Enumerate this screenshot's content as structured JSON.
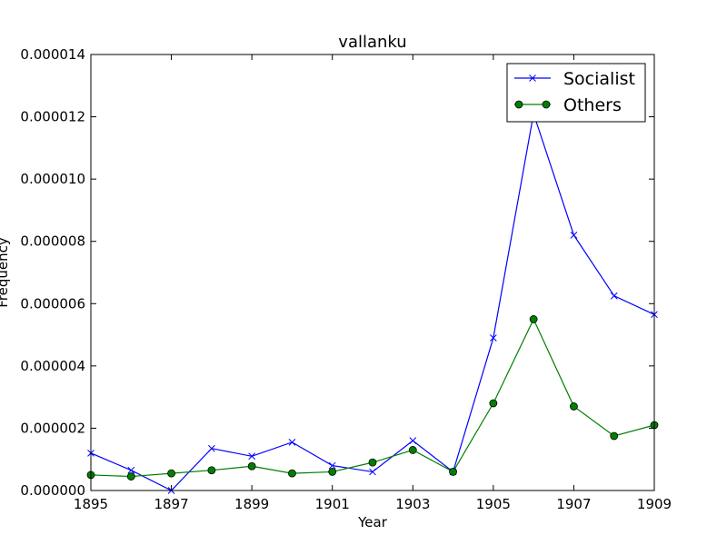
{
  "chart_data": {
    "type": "line",
    "title": "vallanku",
    "xlabel": "Year",
    "ylabel": "Frequency",
    "x": [
      1895,
      1896,
      1897,
      1898,
      1899,
      1900,
      1901,
      1902,
      1903,
      1904,
      1905,
      1906,
      1907,
      1908,
      1909
    ],
    "xlim": [
      1895,
      1909
    ],
    "ylim": [
      0,
      1.4e-05
    ],
    "x_ticks": [
      "1895",
      "1897",
      "1899",
      "1901",
      "1903",
      "1905",
      "1907",
      "1909"
    ],
    "y_ticks": [
      "0.000000",
      "0.000002",
      "0.000004",
      "0.000006",
      "0.000008",
      "0.000010",
      "0.000012",
      "0.000014"
    ],
    "grid": false,
    "legend_position": "top-right",
    "series": [
      {
        "name": "Socialist",
        "color": "#0000ff",
        "marker": "x",
        "values": [
          1.2e-06,
          6.5e-07,
          0.0,
          1.35e-06,
          1.1e-06,
          1.55e-06,
          8e-07,
          6e-07,
          1.6e-06,
          6e-07,
          4.9e-06,
          1.21e-05,
          8.2e-06,
          6.25e-06,
          5.65e-06
        ]
      },
      {
        "name": "Others",
        "color": "#008000",
        "marker": "o",
        "values": [
          5e-07,
          4.5e-07,
          5.5e-07,
          6.5e-07,
          7.8e-07,
          5.5e-07,
          6e-07,
          9e-07,
          1.3e-06,
          6e-07,
          2.8e-06,
          5.5e-06,
          2.7e-06,
          1.75e-06,
          2.1e-06
        ]
      }
    ]
  }
}
